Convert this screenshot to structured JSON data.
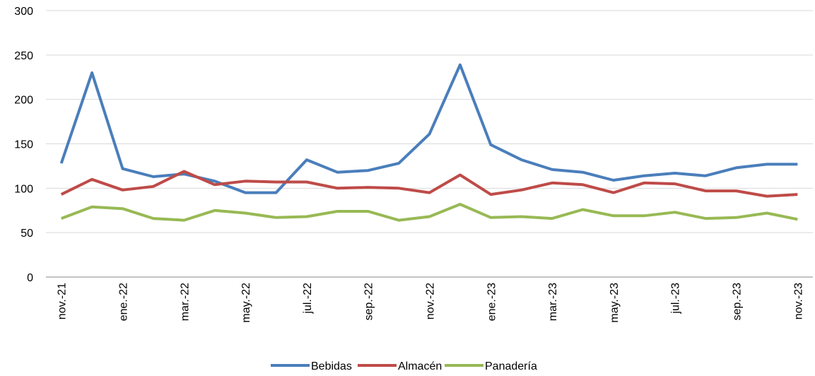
{
  "chart_data": {
    "type": "line",
    "categories": [
      "nov.-21",
      null,
      "ene.-22",
      null,
      "mar.-22",
      null,
      "may.-22",
      null,
      "jul.-22",
      null,
      "sep.-22",
      null,
      "nov.-22",
      null,
      "ene.-23",
      null,
      "mar.-23",
      null,
      "may.-23",
      null,
      "jul.-23",
      null,
      "sep.-23",
      null,
      "nov.-23"
    ],
    "series": [
      {
        "name": "Bebidas",
        "color": "#4a7ebb",
        "values": [
          128,
          230,
          122,
          113,
          116,
          108,
          95,
          95,
          132,
          118,
          120,
          128,
          161,
          239,
          149,
          132,
          121,
          118,
          109,
          114,
          117,
          114,
          123,
          127,
          127
        ]
      },
      {
        "name": "Almacén",
        "color": "#be4b48",
        "values": [
          93,
          110,
          98,
          102,
          119,
          104,
          108,
          107,
          107,
          100,
          101,
          100,
          95,
          115,
          93,
          98,
          106,
          104,
          95,
          106,
          105,
          97,
          97,
          91,
          93
        ]
      },
      {
        "name": "Panadería",
        "color": "#98b954",
        "values": [
          66,
          79,
          77,
          66,
          64,
          75,
          72,
          67,
          68,
          74,
          74,
          64,
          68,
          82,
          67,
          68,
          66,
          76,
          69,
          69,
          73,
          66,
          67,
          72,
          65
        ]
      }
    ],
    "ylim": [
      0,
      300
    ],
    "yticks": [
      0,
      50,
      100,
      150,
      200,
      250,
      300
    ],
    "grid": true,
    "legend": "bottom"
  }
}
